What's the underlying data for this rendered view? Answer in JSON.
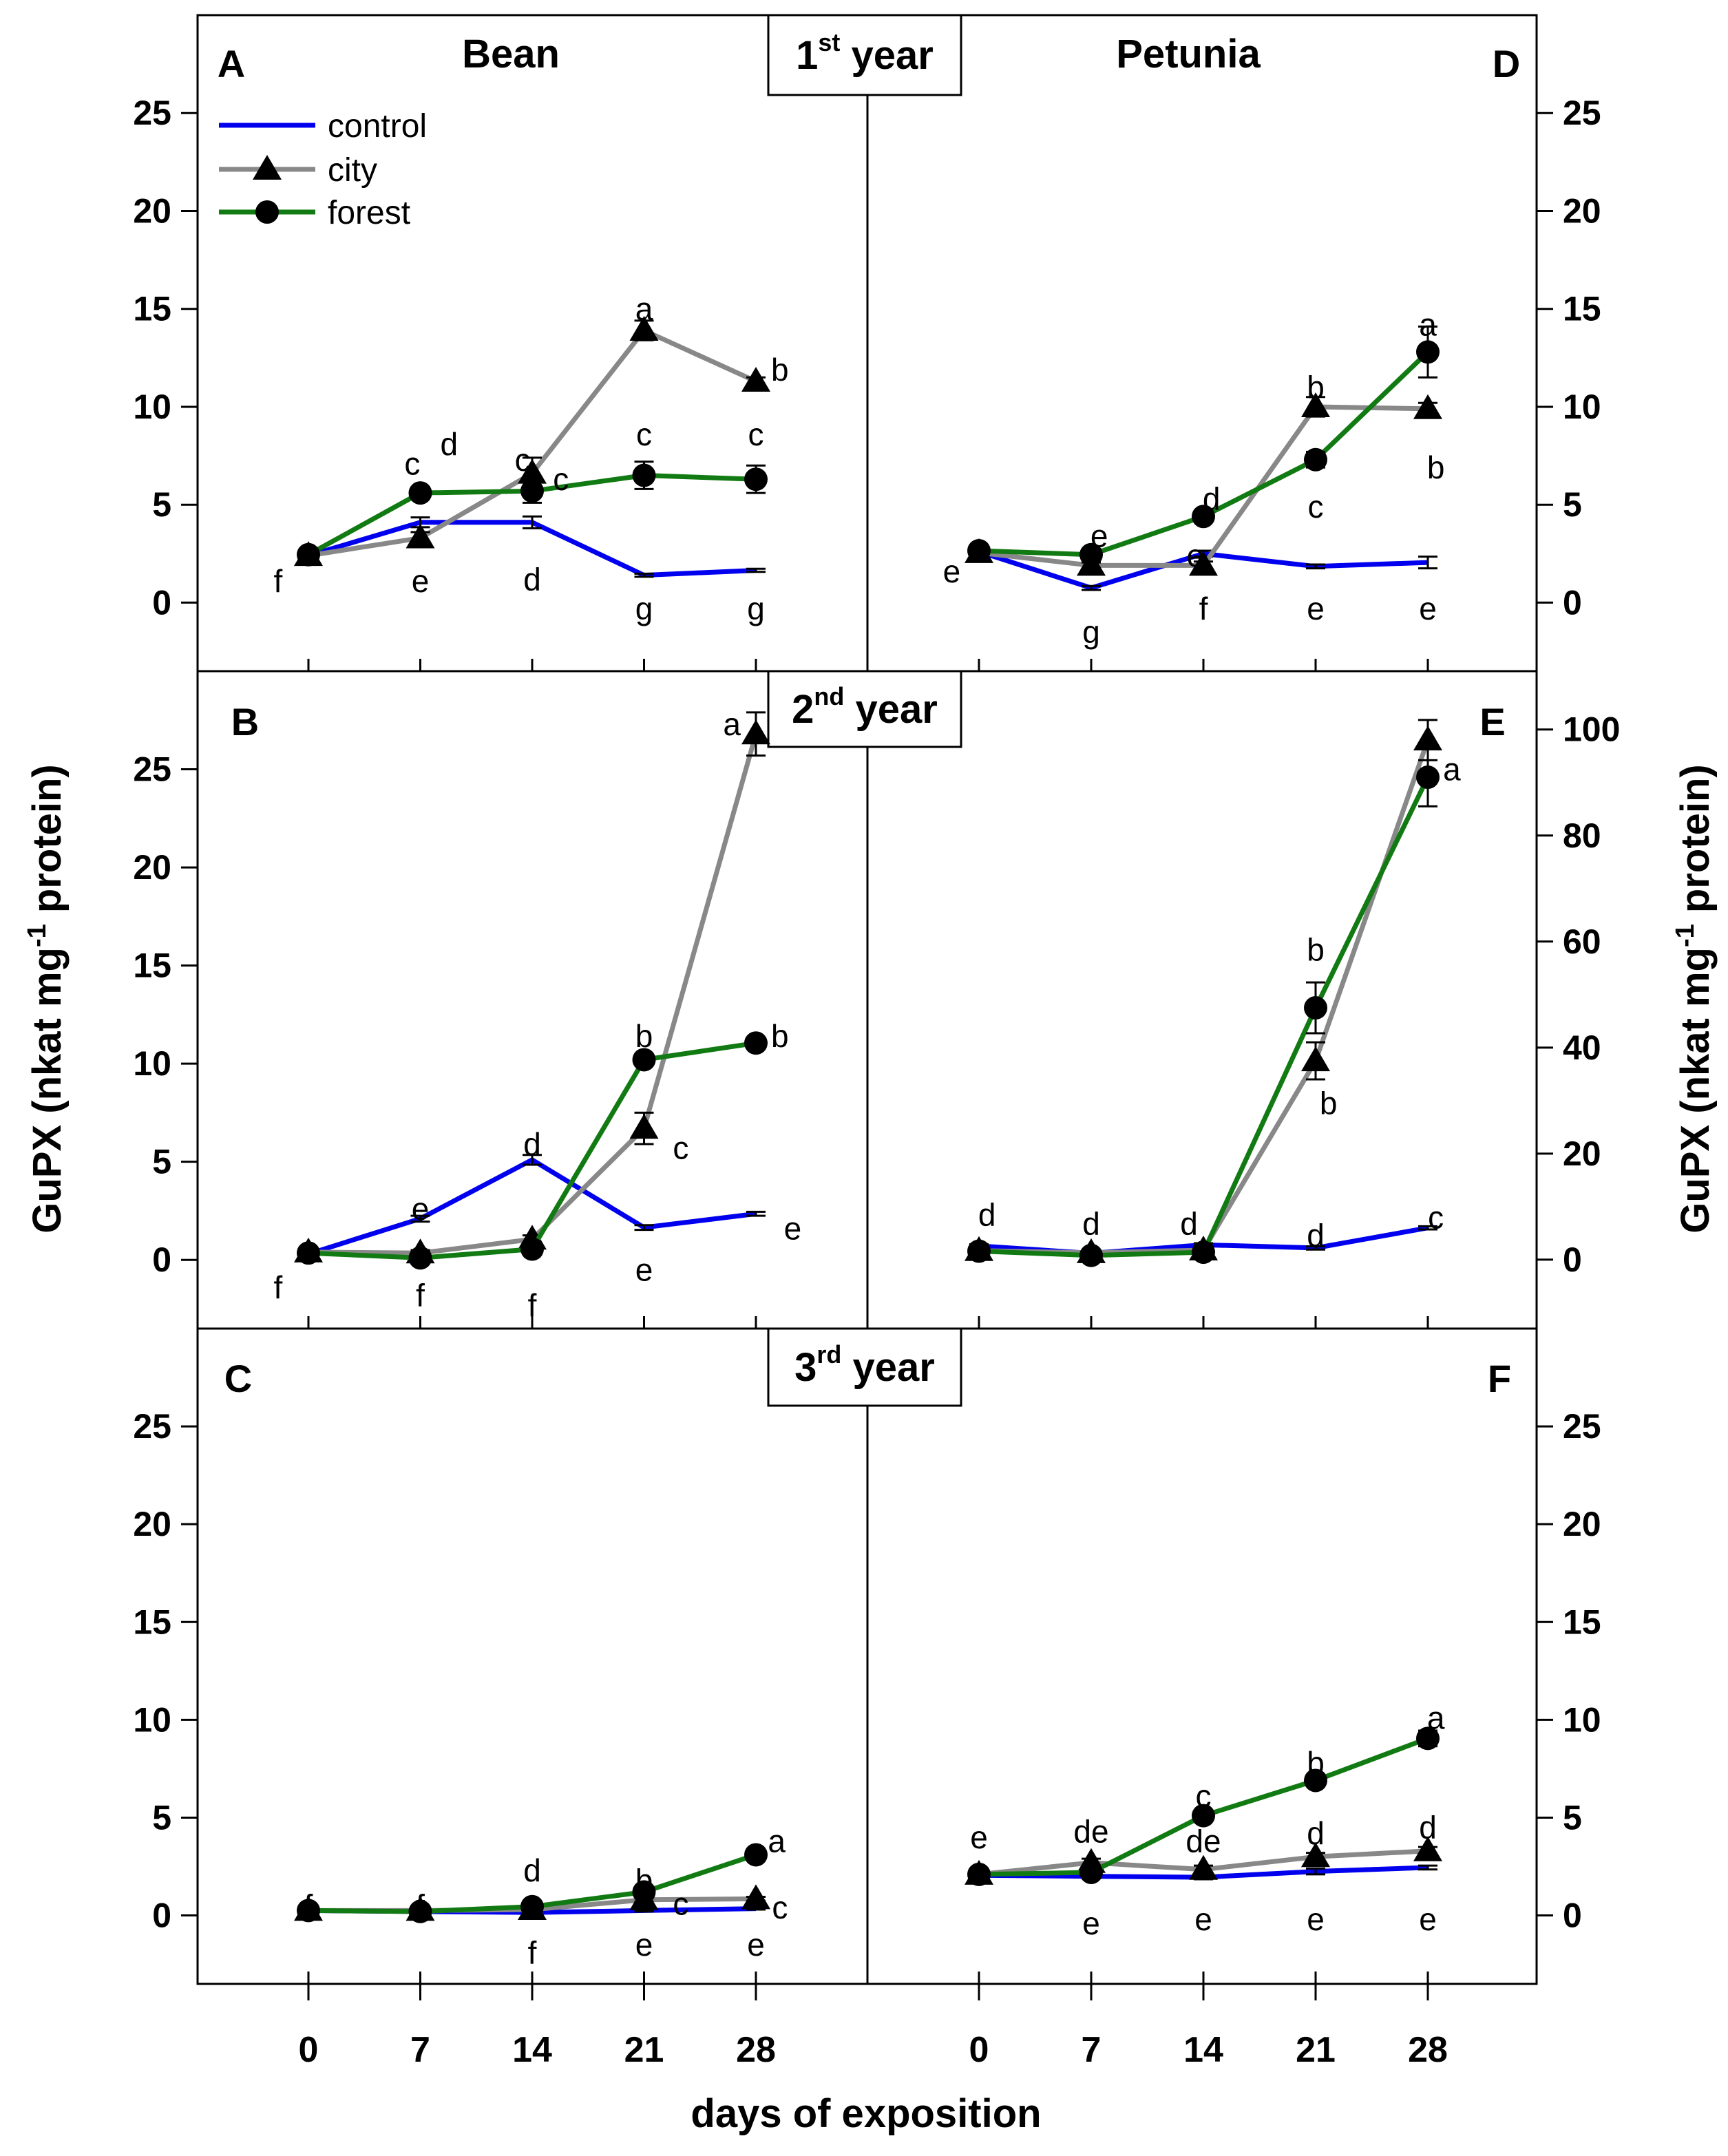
{
  "chart_data": {
    "type": "line",
    "ylabel": "GuPX (nkat mg-1 protein)",
    "ylabel_parts": [
      "GuPX (nkat mg",
      "-1",
      " protein)"
    ],
    "xlabel": "days of exposition",
    "x": [
      0,
      7,
      14,
      21,
      28
    ],
    "x_tick_labels": [
      "0",
      "7",
      "14",
      "21",
      "28"
    ],
    "legend": [
      "control",
      "city",
      "forest"
    ],
    "colors": {
      "control": "#0000ee",
      "city": "#888888",
      "forest": "#127a12"
    },
    "columns": [
      "Bean",
      "Petunia"
    ],
    "years": [
      {
        "number": "1",
        "suffix": "st",
        "word": " year"
      },
      {
        "number": "2",
        "suffix": "nd",
        "word": " year"
      },
      {
        "number": "3",
        "suffix": "rd",
        "word": " year"
      }
    ],
    "panels": [
      {
        "letter": "A",
        "plant": "Bean",
        "ylim": [
          -3.5,
          30
        ],
        "yticks": [
          0,
          5,
          10,
          15,
          20,
          25
        ],
        "ytick_labels": [
          "0",
          "5",
          "10",
          "15",
          "20",
          "25"
        ],
        "series": [
          {
            "name": "control",
            "values": [
              2.4,
              4.1,
              4.1,
              1.4,
              1.65
            ],
            "err": [
              0.15,
              0.25,
              0.3,
              0.08,
              0.08
            ]
          },
          {
            "name": "city",
            "values": [
              2.4,
              3.3,
              6.6,
              13.9,
              11.3
            ],
            "err": [
              0.15,
              0.3,
              0.8,
              0.5,
              0.2
            ]
          },
          {
            "name": "forest",
            "values": [
              2.45,
              5.6,
              5.7,
              6.5,
              6.3
            ],
            "err": [
              0.1,
              0.3,
              0.6,
              0.7,
              0.7
            ]
          }
        ],
        "annotations": [
          {
            "t": "f",
            "x": -1.9,
            "y": 1.1
          },
          {
            "t": "c",
            "x": 6.5,
            "y": 7.1
          },
          {
            "t": "d",
            "x": 8.8,
            "y": 8.1
          },
          {
            "t": "e",
            "x": 7,
            "y": 1.1
          },
          {
            "t": "c",
            "x": 13.4,
            "y": 7.3
          },
          {
            "t": "c",
            "x": 15.8,
            "y": 6.3
          },
          {
            "t": "d",
            "x": 14,
            "y": 1.2
          },
          {
            "t": "a",
            "x": 21,
            "y": 15.0
          },
          {
            "t": "g",
            "x": 21,
            "y": -0.3
          },
          {
            "t": "b",
            "x": 29.5,
            "y": 11.9
          },
          {
            "t": "c",
            "x": 21,
            "y": 8.6
          },
          {
            "t": "c",
            "x": 28,
            "y": 8.6
          },
          {
            "t": "g",
            "x": 28,
            "y": -0.3
          }
        ]
      },
      {
        "letter": "B",
        "plant": "Bean",
        "ylim": [
          -3.5,
          30
        ],
        "yticks": [
          0,
          5,
          10,
          15,
          20,
          25
        ],
        "ytick_labels": [
          "0",
          "5",
          "10",
          "15",
          "20",
          "25"
        ],
        "series": [
          {
            "name": "control",
            "values": [
              0.3,
              2.1,
              5.1,
              1.65,
              2.35
            ],
            "err": [
              0.1,
              0.15,
              0.25,
              0.12,
              0.1
            ]
          },
          {
            "name": "city",
            "values": [
              0.4,
              0.35,
              1.05,
              6.7,
              26.8
            ],
            "err": [
              0.1,
              0.15,
              0.2,
              0.8,
              1.1
            ]
          },
          {
            "name": "forest",
            "values": [
              0.35,
              0.1,
              0.55,
              10.2,
              11.05
            ],
            "err": [
              0.1,
              0.1,
              0.15,
              0.25,
              0.2
            ]
          }
        ],
        "annotations": [
          {
            "t": "f",
            "x": -1.9,
            "y": -1.4
          },
          {
            "t": "e",
            "x": 7,
            "y": 2.6
          },
          {
            "t": "f",
            "x": 7,
            "y": -1.8
          },
          {
            "t": "d",
            "x": 14,
            "y": 5.9
          },
          {
            "t": "f",
            "x": 14,
            "y": -2.3
          },
          {
            "t": "b",
            "x": 21,
            "y": 11.4
          },
          {
            "t": "c",
            "x": 23.3,
            "y": 5.7
          },
          {
            "t": "e",
            "x": 21,
            "y": -0.5
          },
          {
            "t": "a",
            "x": 26.5,
            "y": 27.3
          },
          {
            "t": "b",
            "x": 29.5,
            "y": 11.4
          },
          {
            "t": "e",
            "x": 30.3,
            "y": 1.6
          }
        ]
      },
      {
        "letter": "C",
        "plant": "Bean",
        "ylim": [
          -3.5,
          30
        ],
        "yticks": [
          0,
          5,
          10,
          15,
          20,
          25
        ],
        "ytick_labels": [
          "0",
          "5",
          "10",
          "15",
          "20",
          "25"
        ],
        "series": [
          {
            "name": "control",
            "values": [
              0.25,
              0.2,
              0.15,
              0.25,
              0.35
            ],
            "err": [
              0.05,
              0.05,
              0.05,
              0.05,
              0.05
            ]
          },
          {
            "name": "city",
            "values": [
              0.25,
              0.25,
              0.3,
              0.8,
              0.85
            ],
            "err": [
              0.05,
              0.05,
              0.1,
              0.1,
              0.1
            ]
          },
          {
            "name": "forest",
            "values": [
              0.25,
              0.2,
              0.45,
              1.2,
              3.1
            ],
            "err": [
              0.05,
              0.05,
              0.1,
              0.15,
              0.15
            ]
          }
        ],
        "annotations": [
          {
            "t": "f",
            "x": 0,
            "y": 0.5
          },
          {
            "t": "f",
            "x": 7,
            "y": 0.5
          },
          {
            "t": "d",
            "x": 14,
            "y": 2.3
          },
          {
            "t": "f",
            "x": 14,
            "y": -1.9
          },
          {
            "t": "b",
            "x": 21,
            "y": 1.8
          },
          {
            "t": "c",
            "x": 23.3,
            "y": 0.6
          },
          {
            "t": "e",
            "x": 21,
            "y": -1.5
          },
          {
            "t": "a",
            "x": 29.3,
            "y": 3.8
          },
          {
            "t": "c",
            "x": 29.5,
            "y": 0.4
          },
          {
            "t": "e",
            "x": 28,
            "y": -1.5
          }
        ]
      },
      {
        "letter": "D",
        "plant": "Petunia",
        "ylim": [
          -3.5,
          30
        ],
        "yticks": [
          0,
          5,
          10,
          15,
          20,
          25
        ],
        "ytick_labels": [
          "0",
          "5",
          "10",
          "15",
          "20",
          "25"
        ],
        "series": [
          {
            "name": "control",
            "values": [
              2.6,
              0.75,
              2.5,
              1.85,
              2.05
            ],
            "err": [
              0.15,
              0.1,
              0.15,
              0.1,
              0.3
            ]
          },
          {
            "name": "city",
            "values": [
              2.55,
              1.9,
              1.9,
              10.0,
              9.9
            ],
            "err": [
              0.15,
              0.15,
              0.2,
              0.5,
              0.3
            ]
          },
          {
            "name": "forest",
            "values": [
              2.65,
              2.45,
              4.4,
              7.3,
              12.8
            ],
            "err": [
              0.15,
              0.15,
              0.2,
              0.4,
              1.3
            ]
          }
        ],
        "annotations": [
          {
            "t": "e",
            "x": -1.7,
            "y": 1.6
          },
          {
            "t": "e",
            "x": 7.5,
            "y": 3.4
          },
          {
            "t": "g",
            "x": 7,
            "y": -1.5
          },
          {
            "t": "d",
            "x": 14.5,
            "y": 5.3
          },
          {
            "t": "e",
            "x": 13.5,
            "y": 2.4
          },
          {
            "t": "f",
            "x": 14,
            "y": -0.3
          },
          {
            "t": "b",
            "x": 21,
            "y": 11.0
          },
          {
            "t": "c",
            "x": 21,
            "y": 4.9
          },
          {
            "t": "e",
            "x": 21,
            "y": -0.3
          },
          {
            "t": "a",
            "x": 28,
            "y": 14.2
          },
          {
            "t": "b",
            "x": 28.5,
            "y": 6.9
          },
          {
            "t": "e",
            "x": 28,
            "y": -0.3
          }
        ]
      },
      {
        "letter": "E",
        "plant": "Petunia",
        "ylim": [
          -13,
          111
        ],
        "yticks": [
          0,
          20,
          40,
          60,
          80,
          100
        ],
        "ytick_labels": [
          "0",
          "20",
          "40",
          "60",
          "80",
          "100"
        ],
        "series": [
          {
            "name": "control",
            "values": [
              2.6,
              1.2,
              2.8,
              2.2,
              6.0
            ],
            "err": [
              0.3,
              0.2,
              0.3,
              0.3,
              0.3
            ]
          },
          {
            "name": "city",
            "values": [
              1.7,
              1.3,
              1.8,
              37.5,
              98.0
            ],
            "err": [
              0.2,
              0.2,
              0.2,
              3.5,
              3.8
            ]
          },
          {
            "name": "forest",
            "values": [
              1.6,
              0.8,
              1.4,
              47.5,
              91.0
            ],
            "err": [
              0.2,
              0.2,
              0.2,
              4.8,
              5.5
            ]
          }
        ],
        "annotations": [
          {
            "t": "d",
            "x": 0.5,
            "y": 8.5
          },
          {
            "t": "d",
            "x": 7,
            "y": 6.8
          },
          {
            "t": "d",
            "x": 13.1,
            "y": 6.8
          },
          {
            "t": "d",
            "x": 21,
            "y": 4.6
          },
          {
            "t": "c",
            "x": 28.5,
            "y": 8.0
          },
          {
            "t": "b",
            "x": 21,
            "y": 58.5
          },
          {
            "t": "b",
            "x": 21.8,
            "y": 29.5
          },
          {
            "t": "a",
            "x": 29.5,
            "y": 92.5
          }
        ]
      },
      {
        "letter": "F",
        "plant": "Petunia",
        "ylim": [
          -3.5,
          30
        ],
        "yticks": [
          0,
          5,
          10,
          15,
          20,
          25
        ],
        "ytick_labels": [
          "0",
          "5",
          "10",
          "15",
          "20",
          "25"
        ],
        "series": [
          {
            "name": "control",
            "values": [
              2.05,
              2.0,
              1.95,
              2.25,
              2.45
            ],
            "err": [
              0.1,
              0.1,
              0.1,
              0.15,
              0.1
            ]
          },
          {
            "name": "city",
            "values": [
              2.1,
              2.7,
              2.35,
              3.0,
              3.3
            ],
            "err": [
              0.15,
              0.2,
              0.2,
              0.2,
              0.2
            ]
          },
          {
            "name": "forest",
            "values": [
              2.1,
              2.2,
              5.1,
              6.9,
              9.05
            ],
            "err": [
              0.1,
              0.15,
              0.15,
              0.2,
              0.4
            ]
          }
        ],
        "annotations": [
          {
            "t": "e",
            "x": 0,
            "y": 4.0
          },
          {
            "t": "de",
            "x": 7,
            "y": 4.3
          },
          {
            "t": "e",
            "x": 7,
            "y": -0.4
          },
          {
            "t": "c",
            "x": 14,
            "y": 6.1
          },
          {
            "t": "de",
            "x": 14,
            "y": 3.8
          },
          {
            "t": "e",
            "x": 14,
            "y": -0.2
          },
          {
            "t": "b",
            "x": 21,
            "y": 7.8
          },
          {
            "t": "d",
            "x": 21,
            "y": 4.2
          },
          {
            "t": "e",
            "x": 21,
            "y": -0.2
          },
          {
            "t": "a",
            "x": 28.5,
            "y": 10.1
          },
          {
            "t": "d",
            "x": 28,
            "y": 4.5
          },
          {
            "t": "e",
            "x": 28,
            "y": -0.2
          }
        ]
      }
    ]
  }
}
